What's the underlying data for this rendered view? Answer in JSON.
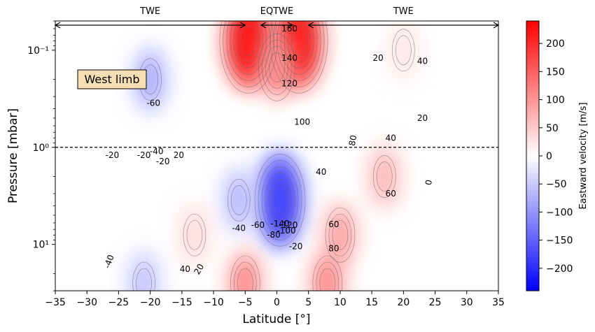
{
  "chart_data": {
    "type": "heatmap",
    "xlabel": "Latitude [°]",
    "ylabel": "Pressure [mbar]",
    "colorbar_label": "Eastward velocity [m/s]",
    "xlim": [
      -35,
      35
    ],
    "ylim_mbar": [
      30,
      0.05
    ],
    "y_scale": "log",
    "x_ticks": [
      -35,
      -30,
      -25,
      -20,
      -15,
      -10,
      -5,
      0,
      5,
      10,
      15,
      20,
      25,
      30,
      35
    ],
    "x_tick_labels": [
      "−35",
      "−30",
      "−25",
      "−20",
      "−15",
      "−10",
      "−5",
      "0",
      "5",
      "10",
      "15",
      "20",
      "25",
      "30",
      "35"
    ],
    "y_ticks": [
      0.1,
      1,
      10
    ],
    "y_tick_labels": [
      "10⁻¹",
      "10⁰",
      "10¹"
    ],
    "colorbar_range": [
      -240,
      240
    ],
    "colorbar_ticks": [
      200,
      150,
      100,
      50,
      0,
      -50,
      -100,
      -150,
      -200
    ],
    "colorbar_tick_labels": [
      "200",
      "150",
      "100",
      "50",
      "0",
      "−50",
      "−100",
      "−150",
      "−200"
    ],
    "colormap": [
      "#0000ff",
      "#ffffff",
      "#ff0000"
    ],
    "reference_line_mbar": 1,
    "annotation_box": "West limb",
    "regions": [
      {
        "label": "TWE",
        "from": -35,
        "to": -5
      },
      {
        "label": "EQTWE",
        "from": -2.5,
        "to": 2.5
      },
      {
        "label": "TWE",
        "from": 5,
        "to": 35
      }
    ],
    "field_features": [
      {
        "lat": 3.5,
        "p_mbar": 0.08,
        "u": 210
      },
      {
        "lat": -4.5,
        "p_mbar": 0.08,
        "u": 215
      },
      {
        "lat": 0,
        "p_mbar": 0.15,
        "u": 110
      },
      {
        "lat": 0.5,
        "p_mbar": 3.5,
        "u": -175
      },
      {
        "lat": -6,
        "p_mbar": 3.5,
        "u": -60
      },
      {
        "lat": -20,
        "p_mbar": 0.2,
        "u": -70
      },
      {
        "lat": -21,
        "p_mbar": 25,
        "u": -50
      },
      {
        "lat": 10,
        "p_mbar": 8,
        "u": 80
      },
      {
        "lat": -5,
        "p_mbar": 25,
        "u": 100
      },
      {
        "lat": 17,
        "p_mbar": 2,
        "u": 60
      },
      {
        "lat": 8,
        "p_mbar": 25,
        "u": 100
      },
      {
        "lat": 20,
        "p_mbar": 0.1,
        "u": 20
      },
      {
        "lat": -13,
        "p_mbar": 8,
        "u": 30
      }
    ],
    "contour_labels": [
      {
        "text": "160",
        "lat": 2,
        "p_mbar": 0.06
      },
      {
        "text": "140",
        "lat": 2,
        "p_mbar": 0.12
      },
      {
        "text": "120",
        "lat": 2,
        "p_mbar": 0.22
      },
      {
        "text": "100",
        "lat": 4,
        "p_mbar": 0.55
      },
      {
        "text": "80",
        "lat": 12,
        "p_mbar": 0.85,
        "rotate": -80
      },
      {
        "text": "40",
        "lat": 7,
        "p_mbar": 1.8
      },
      {
        "text": "20",
        "lat": 16,
        "p_mbar": 0.12
      },
      {
        "text": "40",
        "lat": 23,
        "p_mbar": 0.13
      },
      {
        "text": "20",
        "lat": 23,
        "p_mbar": 0.5
      },
      {
        "text": "40",
        "lat": 18,
        "p_mbar": 0.8
      },
      {
        "text": "60",
        "lat": 18,
        "p_mbar": 3.0
      },
      {
        "text": "0",
        "lat": 24,
        "p_mbar": 2.3,
        "rotate": -80
      },
      {
        "text": "60",
        "lat": 9,
        "p_mbar": 6.2
      },
      {
        "text": "80",
        "lat": 9,
        "p_mbar": 11
      },
      {
        "text": "-60",
        "lat": -19.5,
        "p_mbar": 0.35
      },
      {
        "text": "-20",
        "lat": -26,
        "p_mbar": 1.2
      },
      {
        "text": "-20",
        "lat": -21,
        "p_mbar": 1.2
      },
      {
        "text": "-40",
        "lat": -19,
        "p_mbar": 1.1
      },
      {
        "text": "-20",
        "lat": -18,
        "p_mbar": 1.4
      },
      {
        "text": "20",
        "lat": -15.5,
        "p_mbar": 1.2
      },
      {
        "text": "-40",
        "lat": -6,
        "p_mbar": 6.8
      },
      {
        "text": "-60",
        "lat": -3,
        "p_mbar": 6.3
      },
      {
        "text": "-140",
        "lat": 0.5,
        "p_mbar": 6.1
      },
      {
        "text": "-120",
        "lat": 1.8,
        "p_mbar": 6.3
      },
      {
        "text": "-100",
        "lat": 1.5,
        "p_mbar": 7.2
      },
      {
        "text": "-80",
        "lat": -0.5,
        "p_mbar": 8.0
      },
      {
        "text": "-20",
        "lat": 3,
        "p_mbar": 10.5
      },
      {
        "text": "-40",
        "lat": -26.5,
        "p_mbar": 15,
        "rotate": -70
      },
      {
        "text": "40",
        "lat": -14.5,
        "p_mbar": 18
      },
      {
        "text": "20",
        "lat": -12.3,
        "p_mbar": 18,
        "rotate": -60
      }
    ]
  }
}
